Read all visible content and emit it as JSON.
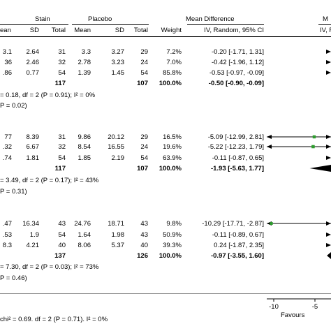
{
  "header": {
    "group1": "Stain",
    "group2": "Placebo",
    "md_title": "Mean Difference",
    "md_sub": "IV, Random, 95% CI",
    "right_title": "M",
    "right_sub": "IV, R",
    "cols": {
      "mean1": "ean",
      "sd1": "SD",
      "total1": "Total",
      "mean2": "Mean",
      "sd2": "SD",
      "total2": "Total",
      "weight": "Weight"
    }
  },
  "groups": [
    {
      "rows": [
        {
          "mean1": "3.1",
          "sd1": "2.64",
          "total1": "31",
          "mean2": "3.3",
          "sd2": "3.27",
          "total2": "29",
          "weight": "7.2%",
          "ci": "-0.20 [-1.71, 1.31]"
        },
        {
          "mean1": "36",
          "sd1": "2.46",
          "total1": "32",
          "mean2": "2.78",
          "sd2": "3.23",
          "total2": "24",
          "weight": "7.0%",
          "ci": "-0.42 [-1.96, 1.12]"
        },
        {
          "mean1": ".86",
          "sd1": "0.77",
          "total1": "54",
          "mean2": "1.39",
          "sd2": "1.45",
          "total2": "54",
          "weight": "85.8%",
          "ci": "-0.53 [-0.97, -0.09]"
        }
      ],
      "subtotal": {
        "total1": "117",
        "total2": "107",
        "weight": "100.0%",
        "ci": "-0.50 [-0.90, -0.09]"
      },
      "het": "= 0.18, df = 2 (P = 0.91); I² = 0%",
      "test": "P = 0.02)"
    },
    {
      "rows": [
        {
          "mean1": "77",
          "sd1": "8.39",
          "total1": "31",
          "mean2": "9.86",
          "sd2": "20.12",
          "total2": "29",
          "weight": "16.5%",
          "ci": "-5.09 [-12.99, 2.81]"
        },
        {
          "mean1": ".32",
          "sd1": "6.67",
          "total1": "32",
          "mean2": "8.54",
          "sd2": "16.55",
          "total2": "24",
          "weight": "19.6%",
          "ci": "-5.22 [-12.23, 1.79]"
        },
        {
          "mean1": ".74",
          "sd1": "1.81",
          "total1": "54",
          "mean2": "1.85",
          "sd2": "2.19",
          "total2": "54",
          "weight": "63.9%",
          "ci": "-0.11 [-0.87, 0.65]"
        }
      ],
      "subtotal": {
        "total1": "117",
        "total2": "107",
        "weight": "100.0%",
        "ci": "-1.93 [-5.63, 1.77]"
      },
      "het": "= 3.49, df = 2 (P = 0.17); I² = 43%",
      "test": "P = 0.31)"
    },
    {
      "rows": [
        {
          "mean1": ".47",
          "sd1": "16.34",
          "total1": "43",
          "mean2": "24.76",
          "sd2": "18.71",
          "total2": "43",
          "weight": "9.8%",
          "ci": "-10.29 [-17.71, -2.87]"
        },
        {
          "mean1": ".53",
          "sd1": "1.9",
          "total1": "54",
          "mean2": "1.64",
          "sd2": "1.98",
          "total2": "43",
          "weight": "50.9%",
          "ci": "-0.11 [-0.89, 0.67]"
        },
        {
          "mean1": "8.3",
          "sd1": "4.21",
          "total1": "40",
          "mean2": "8.06",
          "sd2": "5.37",
          "total2": "40",
          "weight": "39.3%",
          "ci": "0.24 [-1.87, 2.35]"
        }
      ],
      "subtotal": {
        "total1": "137",
        "total2": "126",
        "weight": "100.0%",
        "ci": "-0.97 [-3.55, 1.60]"
      },
      "het": "= 7.30, df = 2 (P = 0.03); I² = 73%",
      "test": "P = 0.46)"
    }
  ],
  "overall_het": "chi² = 0.69. df = 2 (P = 0.71). I² = 0%",
  "axis": {
    "ticks": [
      "-10",
      "-5"
    ],
    "favours": "Favours"
  },
  "colors": {
    "study_marker": "#2e9d2e",
    "diamond": "#000000"
  },
  "chart_data": {
    "type": "forest",
    "x_scale": "mean difference",
    "xlim_visible": [
      -10,
      -4
    ],
    "series": [
      {
        "values": [
          {
            "md": -0.2,
            "lo": -1.71,
            "hi": 1.31,
            "weight": 7.2
          },
          {
            "md": -0.42,
            "lo": -1.96,
            "hi": 1.12,
            "weight": 7.0
          },
          {
            "md": -0.53,
            "lo": -0.97,
            "hi": -0.09,
            "weight": 85.8
          }
        ],
        "subtotal": {
          "md": -0.5,
          "lo": -0.9,
          "hi": -0.09
        }
      },
      {
        "values": [
          {
            "md": -5.09,
            "lo": -12.99,
            "hi": 2.81,
            "weight": 16.5
          },
          {
            "md": -5.22,
            "lo": -12.23,
            "hi": 1.79,
            "weight": 19.6
          },
          {
            "md": -0.11,
            "lo": -0.87,
            "hi": 0.65,
            "weight": 63.9
          }
        ],
        "subtotal": {
          "md": -1.93,
          "lo": -5.63,
          "hi": 1.77
        }
      },
      {
        "values": [
          {
            "md": -10.29,
            "lo": -17.71,
            "hi": -2.87,
            "weight": 9.8
          },
          {
            "md": -0.11,
            "lo": -0.89,
            "hi": 0.67,
            "weight": 50.9
          },
          {
            "md": 0.24,
            "lo": -1.87,
            "hi": 2.35,
            "weight": 39.3
          }
        ],
        "subtotal": {
          "md": -0.97,
          "lo": -3.55,
          "hi": 1.6
        }
      }
    ]
  }
}
